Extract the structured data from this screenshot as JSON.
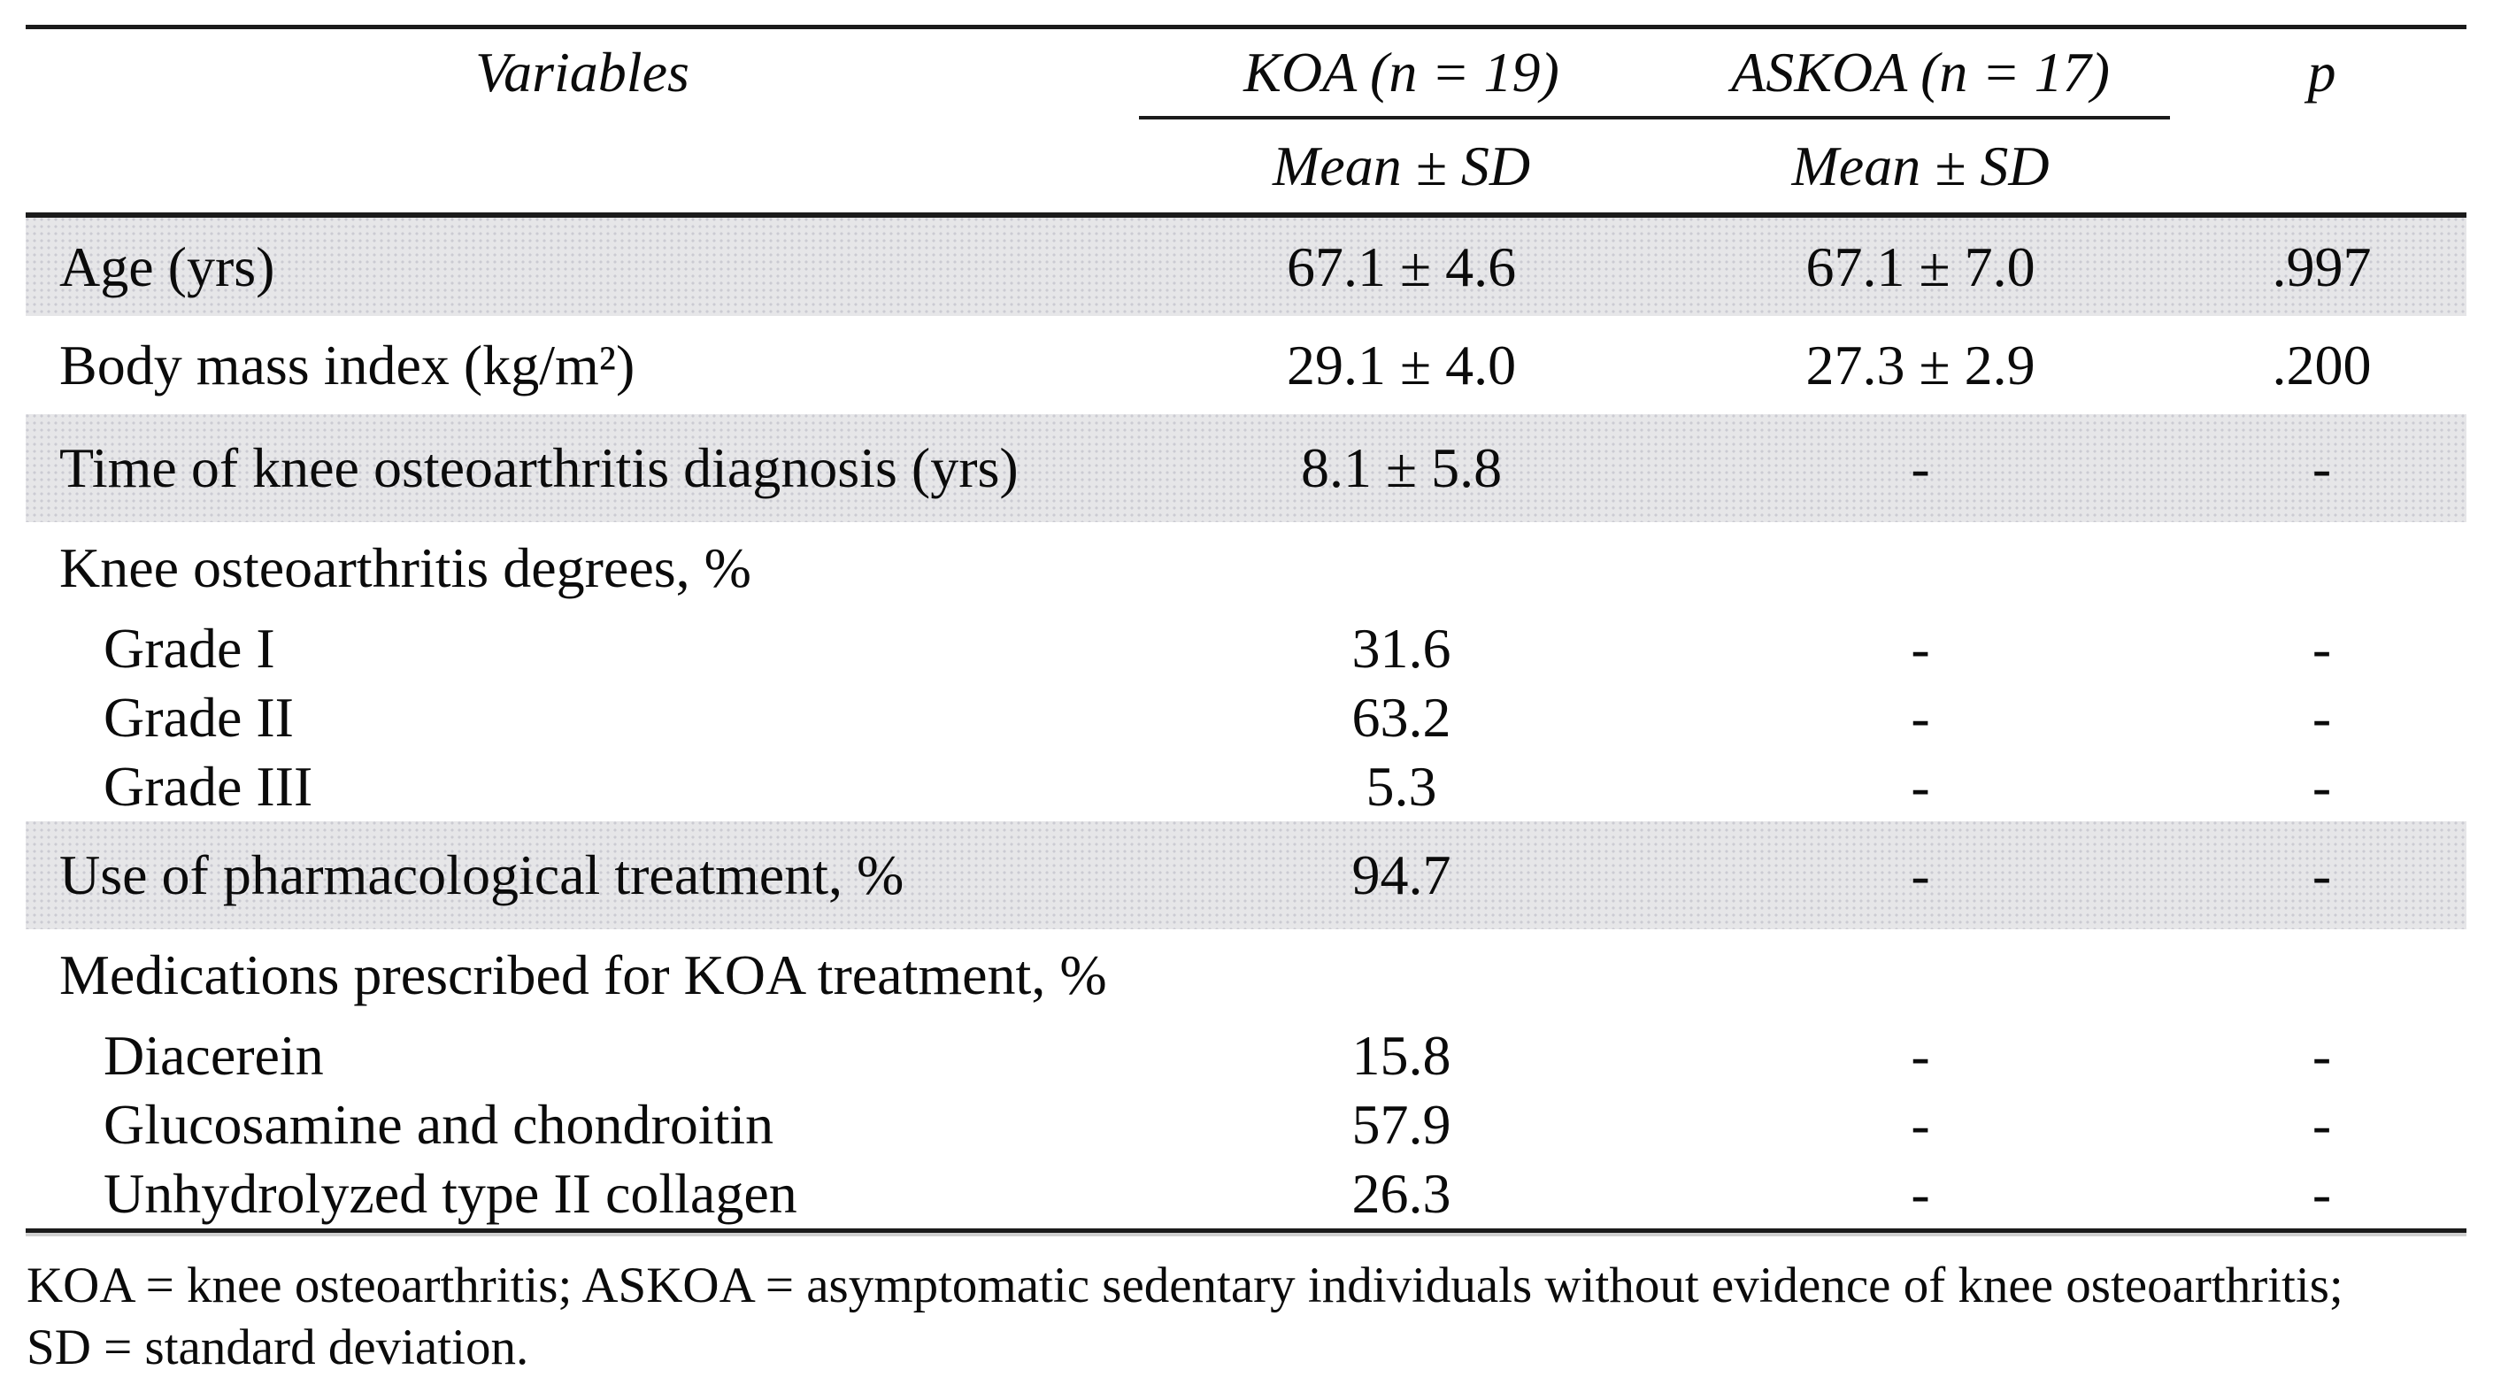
{
  "table": {
    "header": {
      "variables_label": "Variables",
      "group1": "KOA (n = 19)",
      "group2": "ASKOA (n = 17)",
      "p_label": "p",
      "subheader_koa": "Mean ± SD",
      "subheader_askoa": "Mean ± SD"
    },
    "rows": [
      {
        "label": "Age (yrs)",
        "koa": "67.1 ± 4.6",
        "askoa": "67.1 ± 7.0",
        "p": ".997",
        "kind": "main",
        "shaded": true,
        "indent": false
      },
      {
        "label": "Body mass index (kg/m²)",
        "koa": "29.1 ± 4.0",
        "askoa": "27.3 ± 2.9",
        "p": ".200",
        "kind": "main",
        "shaded": false,
        "indent": false
      },
      {
        "label": "Time of knee osteoarthritis diagnosis (yrs)",
        "koa": "8.1 ± 5.8",
        "askoa": "-",
        "p": "-",
        "kind": "big",
        "shaded": true,
        "indent": false
      },
      {
        "label": "Knee osteoarthritis degrees, %",
        "koa": "",
        "askoa": "",
        "p": "",
        "kind": "group",
        "shaded": false,
        "indent": false
      },
      {
        "label": "Grade I",
        "koa": "31.6",
        "askoa": "-",
        "p": "-",
        "kind": "sub",
        "shaded": false,
        "indent": true
      },
      {
        "label": "Grade II",
        "koa": "63.2",
        "askoa": "-",
        "p": "-",
        "kind": "sub",
        "shaded": false,
        "indent": true
      },
      {
        "label": "Grade III",
        "koa": "5.3",
        "askoa": "-",
        "p": "-",
        "kind": "sub",
        "shaded": false,
        "indent": true
      },
      {
        "label": "Use of pharmacological treatment, %",
        "koa": "94.7",
        "askoa": "-",
        "p": "-",
        "kind": "big",
        "shaded": true,
        "indent": false
      },
      {
        "label": "Medications prescribed for KOA treatment, %",
        "koa": "",
        "askoa": "",
        "p": "",
        "kind": "group",
        "shaded": false,
        "indent": false
      },
      {
        "label": "Diacerein",
        "koa": "15.8",
        "askoa": "-",
        "p": "-",
        "kind": "sub",
        "shaded": false,
        "indent": true
      },
      {
        "label": "Glucosamine and chondroitin",
        "koa": "57.9",
        "askoa": "-",
        "p": "-",
        "kind": "sub",
        "shaded": false,
        "indent": true
      },
      {
        "label": "Unhydrolyzed type II collagen",
        "koa": "26.3",
        "askoa": "-",
        "p": "-",
        "kind": "sub",
        "shaded": false,
        "indent": true
      }
    ],
    "footnotes": [
      "KOA = knee osteoarthritis; ASKOA = asymptomatic sedentary individuals without evidence of knee osteoarthritis;",
      "SD = standard deviation."
    ]
  },
  "colors": {
    "row_shade": "#e6e6e8",
    "shade_dot": "#cbcbd2",
    "rule": "#1b1b1b",
    "text": "#0b0b0b",
    "background": "#ffffff"
  }
}
